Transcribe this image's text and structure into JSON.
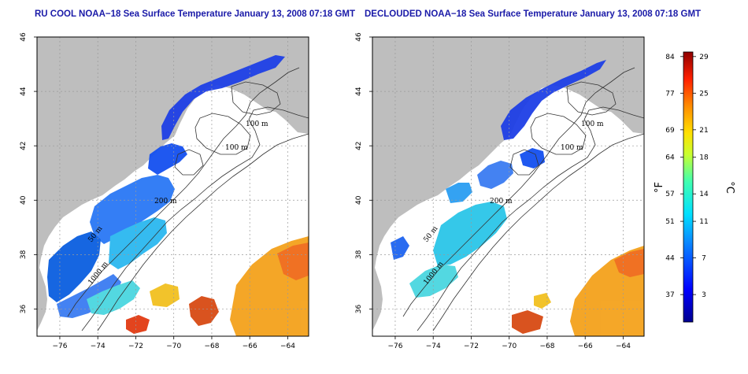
{
  "panels": [
    {
      "id": "left",
      "title": "RU COOL NOAA−18 Sea Surface Temperature January 13, 2008 07:18 GMT"
    },
    {
      "id": "right",
      "title": "DECLOUDED NOAA−18 Sea Surface Temperature January 13, 2008 07:18 GMT"
    }
  ],
  "axes": {
    "x_ticks": [
      "−76",
      "−74",
      "−72",
      "−70",
      "−68",
      "−66",
      "−64"
    ],
    "y_ticks": [
      "46",
      "44",
      "42",
      "40",
      "38",
      "36"
    ],
    "x_values": [
      -76,
      -74,
      -72,
      -70,
      -68,
      -66,
      -64
    ],
    "y_values": [
      46,
      44,
      42,
      40,
      38,
      36
    ],
    "lon_range": [
      -77.2,
      -62.9
    ],
    "lat_range": [
      35.0,
      46.0
    ],
    "grid": true
  },
  "contour_labels": [
    "100 m",
    "100 m",
    "200 m",
    "50 m",
    "1000 m"
  ],
  "colorbar": {
    "fahrenheit_ticks": [
      "84",
      "77",
      "69",
      "64",
      "57",
      "51",
      "44",
      "37"
    ],
    "celsius_ticks": [
      "29",
      "25",
      "21",
      "18",
      "14",
      "11",
      "7",
      "3"
    ],
    "celsius_values": [
      29,
      25,
      21,
      18,
      14,
      11,
      7,
      3
    ],
    "range_c": [
      0,
      29.5
    ],
    "f_label": "°F",
    "c_label": "°C"
  },
  "colors": {
    "land": "#bebebe",
    "ocean_nodata": "#ffffff",
    "title": "#1a1aa8",
    "grid": "#9a9a9a"
  }
}
